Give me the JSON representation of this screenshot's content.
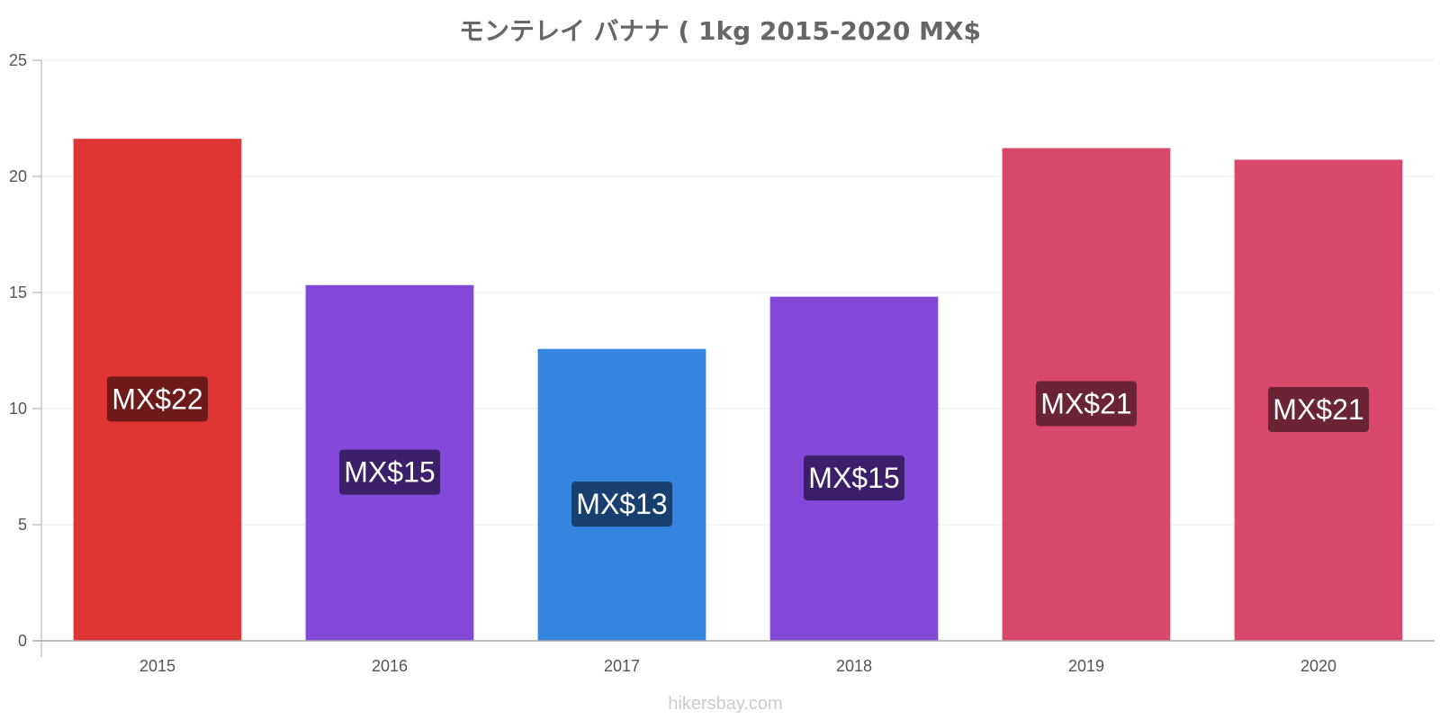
{
  "chart_data": {
    "type": "bar",
    "title": "モンテレイ バナナ ( 1kg 2015-2020 MX$",
    "categories": [
      "2015",
      "2016",
      "2017",
      "2018",
      "2019",
      "2020"
    ],
    "values": [
      21.6,
      15.3,
      12.55,
      14.8,
      21.2,
      20.7
    ],
    "data_labels": [
      "MX$22",
      "MX$15",
      "MX$13",
      "MX$15",
      "MX$21",
      "MX$21"
    ],
    "bar_colors": [
      "#e03535",
      "#8249d8",
      "#3584e0",
      "#8249d8",
      "#d84868",
      "#d84868"
    ],
    "label_bg_colors": [
      "#6e1a1a",
      "#3b2069",
      "#17406e",
      "#3b2069",
      "#6a2436",
      "#6a2436"
    ],
    "ylim": [
      0,
      25
    ],
    "yticks": [
      0,
      5,
      10,
      15,
      20,
      25
    ],
    "grid": true,
    "xlabel": "",
    "ylabel": ""
  },
  "credit": "hikersbay.com"
}
